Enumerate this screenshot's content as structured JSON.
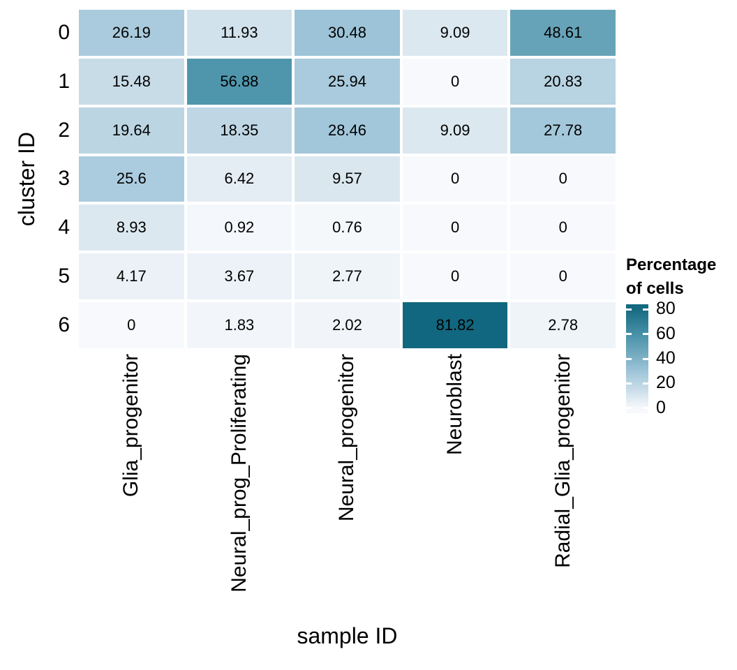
{
  "colors": {
    "background": "#ffffff",
    "cell_text": "#000000",
    "axis_text": "#000000",
    "tick_mark": "#ffffff"
  },
  "chart_data": {
    "type": "heatmap",
    "xlabel": "sample ID",
    "ylabel": "cluster ID",
    "columns": [
      "Glia_progenitor",
      "Neural_prog_Proliferating",
      "Neural_progenitor",
      "Neuroblast",
      "Radial_Glia_progenitor"
    ],
    "rows": [
      "0",
      "1",
      "2",
      "3",
      "4",
      "5",
      "6"
    ],
    "values": [
      [
        26.19,
        11.93,
        30.48,
        9.09,
        48.61
      ],
      [
        15.48,
        56.88,
        25.94,
        0,
        20.83
      ],
      [
        19.64,
        18.35,
        28.46,
        9.09,
        27.78
      ],
      [
        25.6,
        6.42,
        9.57,
        0,
        0
      ],
      [
        8.93,
        0.92,
        0.76,
        0,
        0
      ],
      [
        4.17,
        3.67,
        2.77,
        0,
        0
      ],
      [
        0,
        1.83,
        2.02,
        81.82,
        2.78
      ]
    ],
    "value_range": [
      0,
      81.82
    ],
    "grid": false,
    "legend": {
      "position": "right",
      "title_lines": [
        "Percentage",
        "of cells"
      ],
      "ticks": [
        80,
        60,
        40,
        20,
        0
      ],
      "bar_value_range": [
        -3.95,
        83.95
      ]
    },
    "color_scale": {
      "anchors": [
        {
          "value": 0,
          "color": "#f7f9fc"
        },
        {
          "value": 9.09,
          "color": "#dce8f0"
        },
        {
          "value": 11.93,
          "color": "#d2e2ec"
        },
        {
          "value": 20.83,
          "color": "#b8d3e2"
        },
        {
          "value": 26.19,
          "color": "#a9cbdd"
        },
        {
          "value": 30.48,
          "color": "#9cc3d8"
        },
        {
          "value": 48.61,
          "color": "#67a3b8"
        },
        {
          "value": 56.88,
          "color": "#4f96ad"
        },
        {
          "value": 81.82,
          "color": "#11677f"
        }
      ]
    }
  }
}
